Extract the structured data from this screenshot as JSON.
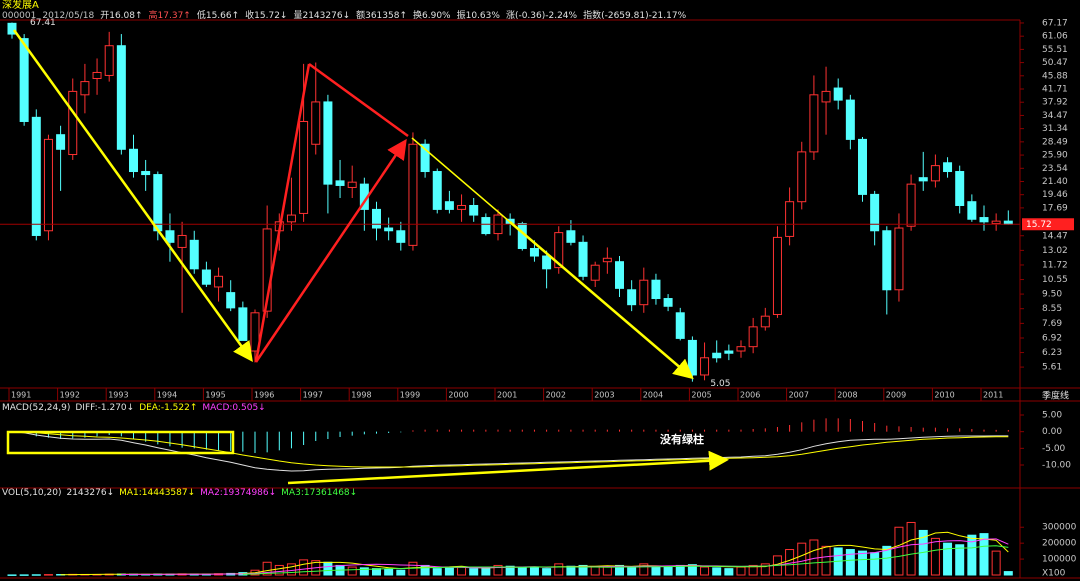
{
  "header": {
    "title": "深发展A",
    "quote": [
      {
        "text": "000001",
        "color": "#c0c0c0"
      },
      {
        "text": "2012/05/18",
        "color": "#c0c0c0"
      },
      {
        "text": "开16.08↑",
        "color": "#e0e0e0"
      },
      {
        "text": "高17.37↑",
        "color": "#ff5050"
      },
      {
        "text": "低15.66↑",
        "color": "#e0e0e0"
      },
      {
        "text": "收15.72↓",
        "color": "#e0e0e0"
      },
      {
        "text": "量2143276↓",
        "color": "#e0e0e0"
      },
      {
        "text": "额361358↑",
        "color": "#e0e0e0"
      },
      {
        "text": "换6.90%",
        "color": "#e0e0e0"
      },
      {
        "text": "振10.63%",
        "color": "#e0e0e0"
      },
      {
        "text": "涨(-0.36)-2.24%",
        "color": "#e0e0e0"
      },
      {
        "text": "指数(-2659.81)-21.17%",
        "color": "#e0e0e0"
      }
    ]
  },
  "chart_data": [
    {
      "type": "candlestick",
      "log_scale": true,
      "period_label": "季度线",
      "up_color": "#ff3232",
      "down_color": "#54ffff",
      "categories": [
        "1991",
        null,
        null,
        null,
        "1992",
        null,
        null,
        null,
        "1993",
        null,
        null,
        null,
        "1994",
        null,
        null,
        null,
        "1995",
        null,
        null,
        null,
        "1996",
        null,
        null,
        null,
        "1997",
        null,
        null,
        null,
        "1998",
        null,
        null,
        null,
        "1999",
        null,
        null,
        null,
        "2000",
        null,
        null,
        null,
        "2001",
        null,
        null,
        null,
        "2002",
        null,
        null,
        null,
        "2003",
        null,
        null,
        null,
        "2004",
        null,
        null,
        null,
        "2005",
        null,
        null,
        null,
        "2006",
        null,
        null,
        null,
        "2007",
        null,
        null,
        null,
        "2008",
        null,
        null,
        null,
        "2009",
        null,
        null,
        null,
        "2010",
        null,
        null,
        null,
        "2011",
        null,
        null
      ],
      "open": [
        67,
        60,
        34,
        15,
        30,
        26,
        40,
        45,
        46,
        57,
        27,
        23,
        22.5,
        15,
        13.3,
        14,
        11.3,
        10,
        9.6,
        8.6,
        6.3,
        8.4,
        15,
        16,
        17,
        28,
        38,
        21.5,
        20.5,
        21,
        17.5,
        15.3,
        15,
        13.5,
        28,
        23,
        18.5,
        17.5,
        18,
        16.5,
        14.7,
        16.3,
        15.8,
        13.2,
        12.5,
        11.5,
        15,
        13.8,
        10.5,
        12,
        12,
        9.8,
        8.8,
        10.5,
        9.2,
        8.3,
        6.8,
        5.3,
        6.2,
        6.3,
        6.3,
        6.5,
        7.5,
        8.2,
        14.4,
        18.5,
        26.5,
        38,
        42,
        38.5,
        29,
        19.5,
        15,
        9.8,
        15.5,
        22,
        21.5,
        24.5,
        23,
        18.5,
        16.5,
        15.8,
        16.08
      ],
      "high": [
        67.41,
        62,
        36,
        30,
        32,
        45,
        50,
        52,
        63,
        62,
        30,
        25,
        23,
        17,
        16,
        15,
        12,
        11.5,
        10.5,
        9,
        8.5,
        18,
        17,
        22,
        50,
        50.5,
        40,
        25,
        24,
        22,
        18.5,
        16.5,
        16,
        30.5,
        29,
        23.5,
        20,
        19.5,
        19,
        17,
        17.5,
        17,
        16,
        14,
        13,
        15.5,
        16.2,
        14.5,
        12,
        13.3,
        12.5,
        10.5,
        11.5,
        11,
        9.5,
        8.6,
        7,
        6.7,
        6.8,
        6.6,
        6.8,
        8,
        8.6,
        15.5,
        20.5,
        28.5,
        46,
        49,
        45,
        40,
        29.5,
        20,
        15.5,
        17,
        22.5,
        26.5,
        26,
        25.5,
        24,
        19.5,
        18,
        17,
        17.37
      ],
      "low": [
        60,
        32,
        14,
        14,
        20,
        25,
        35,
        40,
        44,
        26,
        22,
        20,
        14,
        12,
        8.3,
        11,
        10,
        9,
        8.4,
        6.8,
        5.8,
        8,
        13,
        15,
        16,
        26,
        17,
        19,
        19,
        15,
        14,
        14,
        13,
        13,
        22,
        17,
        17,
        16,
        16,
        14.5,
        14,
        14.5,
        13,
        12,
        9.9,
        11,
        13.5,
        10.5,
        10,
        11,
        9.3,
        8.4,
        8.3,
        8.8,
        8.4,
        6.8,
        5.05,
        5.1,
        5.8,
        5.9,
        6,
        6.2,
        7.3,
        8,
        13.5,
        17.5,
        25,
        30,
        36,
        27,
        18.5,
        13.5,
        8.2,
        9,
        15,
        20,
        20.5,
        22,
        17,
        16,
        15,
        15,
        15.66
      ],
      "close": [
        62,
        33,
        14.5,
        29,
        27,
        41,
        44,
        47,
        57,
        27,
        23,
        22.5,
        15,
        13.8,
        14.5,
        11.4,
        10.2,
        10.8,
        8.6,
        6.8,
        8.3,
        15.2,
        16,
        16.8,
        33,
        38,
        21,
        20.8,
        21.3,
        17.5,
        15.3,
        15,
        13.8,
        28,
        23,
        17.5,
        17.5,
        18,
        16.8,
        14.7,
        16.8,
        15.8,
        13.2,
        12.5,
        11.4,
        14.8,
        13.8,
        10.8,
        11.7,
        12.3,
        9.9,
        8.8,
        10.5,
        9.2,
        8.7,
        6.9,
        5.3,
        6,
        6,
        6.2,
        6.5,
        7.5,
        8.1,
        14.3,
        18.5,
        26.5,
        40,
        41,
        38.5,
        29,
        19.5,
        15,
        9.8,
        15.3,
        21,
        21.5,
        24,
        23,
        18,
        16.3,
        16,
        16.08,
        15.72
      ],
      "ylim": [
        4.93,
        72.7
      ],
      "yticks": [
        67.17,
        61.06,
        55.51,
        50.47,
        45.88,
        41.71,
        37.92,
        34.47,
        31.34,
        28.49,
        {
          "value": 25.9,
          "label": "25.90"
        },
        23.54,
        {
          "value": 21.4,
          "label": "21.40"
        },
        19.46,
        17.69,
        14.47,
        13.02,
        11.72,
        10.55,
        {
          "value": 9.5,
          "label": "9.50"
        },
        8.55,
        7.69,
        6.92,
        6.23,
        5.61
      ]
    },
    {
      "type": "macd",
      "label": "MACD(52,24,9)",
      "annotation": "没有绿柱",
      "legend": [
        {
          "text": "DIFF:-1.270↓",
          "color": "#e0e0e0"
        },
        {
          "text": "DEA:-1.522↑",
          "color": "#ffff00"
        },
        {
          "text": "MACD:0.505↓",
          "color": "#ff40ff"
        }
      ],
      "series": [
        {
          "color": "#e0e0e0",
          "values": [
            0,
            -0.3,
            -1,
            -1.5,
            -2,
            -2.2,
            -2.3,
            -2.3,
            -2.2,
            -2.6,
            -3.3,
            -4,
            -4.8,
            -5.6,
            -6.3,
            -7,
            -7.8,
            -8.5,
            -9.2,
            -10,
            -10.8,
            -11.3,
            -11.6,
            -11.8,
            -11.7,
            -11.4,
            -11.3,
            -11.2,
            -11.1,
            -11,
            -10.9,
            -10.8,
            -10.7,
            -10.4,
            -10.2,
            -10.1,
            -10,
            -9.9,
            -9.8,
            -9.7,
            -9.6,
            -9.5,
            -9.4,
            -9.3,
            -9.2,
            -9.1,
            -9,
            -8.9,
            -8.8,
            -8.7,
            -8.6,
            -8.5,
            -8.4,
            -8.3,
            -8.2,
            -8.1,
            -8,
            -7.9,
            -7.8,
            -7.7,
            -7.6,
            -7.4,
            -7.2,
            -6.8,
            -6.2,
            -5.4,
            -4.4,
            -3.6,
            -3,
            -2.6,
            -2.4,
            -2.3,
            -2.3,
            -2.1,
            -1.9,
            -1.7,
            -1.5,
            -1.4,
            -1.3,
            -1.3,
            -1.3,
            -1.28,
            -1.27
          ]
        },
        {
          "color": "#ffff00",
          "values": [
            0,
            -0.1,
            -0.3,
            -0.6,
            -0.9,
            -1.2,
            -1.4,
            -1.6,
            -1.7,
            -1.9,
            -2.2,
            -2.5,
            -2.9,
            -3.4,
            -3.9,
            -4.5,
            -5.1,
            -5.7,
            -6.3,
            -7,
            -7.6,
            -8.2,
            -8.8,
            -9.3,
            -9.7,
            -10,
            -10.2,
            -10.4,
            -10.5,
            -10.6,
            -10.6,
            -10.6,
            -10.6,
            -10.6,
            -10.5,
            -10.4,
            -10.3,
            -10.2,
            -10.1,
            -10,
            -9.9,
            -9.8,
            -9.7,
            -9.6,
            -9.5,
            -9.4,
            -9.3,
            -9.2,
            -9.1,
            -9,
            -8.9,
            -8.8,
            -8.7,
            -8.6,
            -8.5,
            -8.4,
            -8.3,
            -8.2,
            -8.1,
            -8,
            -7.9,
            -7.8,
            -7.7,
            -7.5,
            -7.2,
            -6.8,
            -6.2,
            -5.6,
            -5,
            -4.5,
            -4,
            -3.6,
            -3.2,
            -2.9,
            -2.6,
            -2.3,
            -2.1,
            -1.9,
            -1.8,
            -1.7,
            -1.6,
            -1.55,
            -1.522
          ]
        }
      ],
      "histogram": {
        "up_color": "#ff3232",
        "down_color": "#54ffff",
        "values": [
          0,
          -0.4,
          -1.4,
          -1.8,
          -2.2,
          -2,
          -1.8,
          -1.4,
          -1,
          -1.4,
          -2.2,
          -3,
          -3.8,
          -4.4,
          -4.8,
          -5,
          -5.4,
          -5.6,
          -5.8,
          -6,
          -6.4,
          -6.2,
          -5.6,
          -5,
          -4,
          -2.8,
          -2.2,
          -1.6,
          -1.2,
          -0.8,
          -0.6,
          -0.4,
          -0.2,
          0.4,
          0.6,
          0.6,
          0.6,
          0.6,
          0.6,
          0.6,
          0.6,
          0.6,
          0.6,
          0.6,
          0.6,
          0.6,
          0.6,
          0.6,
          0.6,
          0.6,
          0.6,
          0.6,
          0.6,
          0.6,
          0.6,
          0.6,
          0.6,
          0.6,
          0.6,
          0.6,
          0.6,
          0.8,
          1,
          1.4,
          2,
          2.8,
          3.6,
          4,
          4,
          3.8,
          3.2,
          2.6,
          1.8,
          1.6,
          1.4,
          1.2,
          1.2,
          1,
          1,
          0.8,
          0.6,
          0.54,
          0.505
        ]
      },
      "ylim": [
        -16,
        8.6
      ],
      "yticks": [
        {
          "value": 5,
          "label": "5.00"
        },
        {
          "value": 0,
          "label": "0.00"
        },
        {
          "value": -5,
          "label": "-5.00"
        },
        {
          "value": -10,
          "label": "-10.00"
        }
      ]
    },
    {
      "type": "volume",
      "label": "VOL(5,10,20)",
      "unit_label": "X100",
      "legend": [
        {
          "text": "2143276↓",
          "color": "#e0e0e0"
        },
        {
          "text": "MA1:14443587↓",
          "color": "#ffff00"
        },
        {
          "text": "MA2:19374986↓",
          "color": "#ff40ff"
        },
        {
          "text": "MA3:17361468↓",
          "color": "#40ff40"
        }
      ],
      "values": [
        500,
        800,
        1500,
        2500,
        3000,
        4000,
        3500,
        3000,
        5000,
        6000,
        5000,
        4000,
        6000,
        5000,
        7000,
        6000,
        5000,
        8000,
        10000,
        15000,
        30000,
        80000,
        60000,
        70000,
        95000,
        90000,
        80000,
        60000,
        50000,
        45000,
        40000,
        35000,
        30000,
        80000,
        60000,
        40000,
        45000,
        50000,
        40000,
        45000,
        60000,
        55000,
        50000,
        45000,
        40000,
        70000,
        55000,
        60000,
        50000,
        55000,
        60000,
        45000,
        70000,
        55000,
        50000,
        60000,
        65000,
        50000,
        45000,
        40000,
        50000,
        60000,
        70000,
        120000,
        160000,
        200000,
        220000,
        180000,
        170000,
        160000,
        150000,
        140000,
        180000,
        300000,
        330000,
        280000,
        230000,
        200000,
        190000,
        250000,
        260000,
        150000,
        21433
      ],
      "series": [
        {
          "color": "#ffff00",
          "values": [
            null,
            null,
            null,
            null,
            1700,
            2700,
            3300,
            3600,
            4500,
            4300,
            4700,
            4600,
            5000,
            5200,
            5400,
            5600,
            5800,
            6200,
            7200,
            8800,
            13600,
            27600,
            39000,
            51000,
            67000,
            79000,
            79000,
            79000,
            75000,
            65000,
            55000,
            46000,
            40000,
            46000,
            49000,
            49000,
            51000,
            55000,
            47000,
            44000,
            48000,
            50000,
            50000,
            51000,
            50000,
            52000,
            52000,
            55000,
            55000,
            58000,
            56000,
            54000,
            58000,
            57000,
            56000,
            58000,
            60000,
            56000,
            54000,
            52000,
            52000,
            52000,
            53000,
            68000,
            92000,
            122000,
            154000,
            176000,
            186000,
            186000,
            176000,
            164000,
            160000,
            186000,
            220000,
            236000,
            264000,
            268000,
            246000,
            230000,
            226000,
            218000,
            144436
          ]
        },
        {
          "color": "#ff40ff",
          "values": [
            null,
            null,
            null,
            null,
            null,
            null,
            null,
            null,
            null,
            3000,
            3500,
            3600,
            4000,
            4300,
            4700,
            5000,
            5200,
            5700,
            6100,
            7000,
            9500,
            16000,
            22000,
            28000,
            37000,
            45000,
            53000,
            59000,
            63000,
            66000,
            67000,
            66000,
            63000,
            61000,
            58000,
            52000,
            48000,
            48000,
            46000,
            45000,
            47000,
            48000,
            50000,
            52000,
            48000,
            50000,
            51000,
            52000,
            52000,
            53000,
            54000,
            53000,
            55000,
            56000,
            57000,
            58000,
            58000,
            57000,
            57000,
            55000,
            54000,
            55000,
            56000,
            62000,
            74000,
            87000,
            104000,
            115000,
            122000,
            130000,
            135000,
            141000,
            156000,
            175000,
            190000,
            195000,
            209000,
            214000,
            216000,
            208000,
            225000,
            227000,
            193750
          ]
        },
        {
          "color": "#40ff40",
          "values": [
            null,
            null,
            null,
            null,
            null,
            null,
            null,
            null,
            null,
            null,
            null,
            null,
            null,
            null,
            null,
            null,
            null,
            null,
            null,
            5000,
            6500,
            10000,
            12500,
            16000,
            20000,
            24000,
            28000,
            31000,
            33000,
            35000,
            37000,
            40000,
            41000,
            43000,
            45000,
            47000,
            49000,
            50000,
            50000,
            50000,
            50000,
            49000,
            49000,
            50000,
            50000,
            50000,
            50000,
            50000,
            50000,
            49000,
            50000,
            50000,
            51000,
            52000,
            53000,
            54000,
            55000,
            55000,
            55000,
            55000,
            54000,
            55000,
            56000,
            60000,
            65000,
            70000,
            76000,
            81000,
            87000,
            93000,
            97000,
            100000,
            106000,
            117000,
            131000,
            142000,
            156000,
            165000,
            169000,
            170000,
            180000,
            184000,
            173615
          ]
        }
      ],
      "ylim": [
        0,
        490000
      ],
      "yticks": [
        100000,
        200000,
        300000
      ]
    }
  ]
}
